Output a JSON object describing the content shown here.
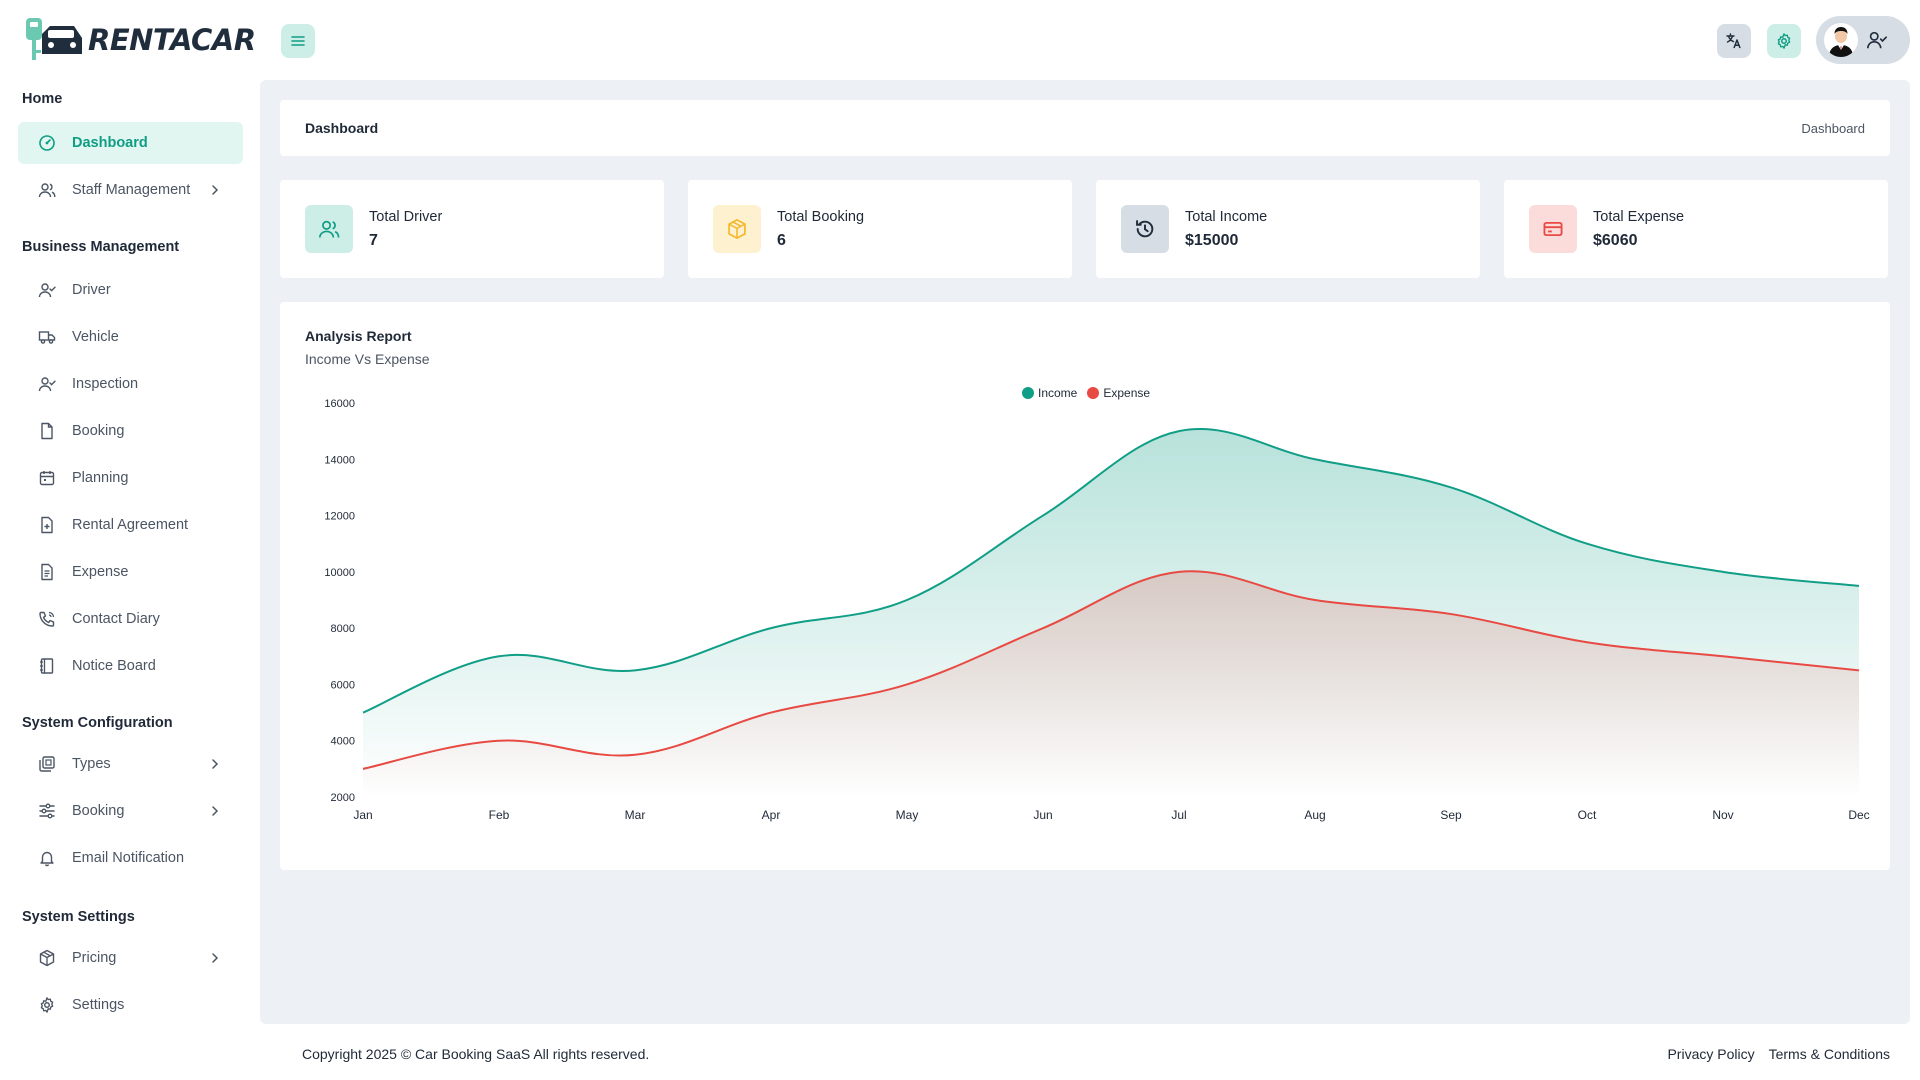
{
  "brand": {
    "name": "RENTACAR"
  },
  "header": {
    "menu_icon": "hamburger-icon",
    "translate_icon": "translate-icon",
    "settings_icon": "gear-icon",
    "user_icon": "user-check-icon"
  },
  "sidebar": {
    "sections": [
      {
        "title": "Home"
      },
      {
        "title": "Business Management"
      },
      {
        "title": "System Configuration"
      },
      {
        "title": "System Settings"
      }
    ],
    "items": [
      {
        "label": "Dashboard",
        "icon": "dashboard-icon",
        "active": true
      },
      {
        "label": "Staff Management",
        "icon": "users-icon",
        "has_children": true
      },
      {
        "label": "Driver",
        "icon": "user-check-icon"
      },
      {
        "label": "Vehicle",
        "icon": "truck-icon"
      },
      {
        "label": "Inspection",
        "icon": "user-check-icon"
      },
      {
        "label": "Booking",
        "icon": "file-icon"
      },
      {
        "label": "Planning",
        "icon": "calendar-icon"
      },
      {
        "label": "Rental Agreement",
        "icon": "file-plus-icon"
      },
      {
        "label": "Expense",
        "icon": "file-text-icon"
      },
      {
        "label": "Contact Diary",
        "icon": "phone-icon"
      },
      {
        "label": "Notice Board",
        "icon": "notebook-icon"
      },
      {
        "label": "Types",
        "icon": "layers-icon",
        "has_children": true
      },
      {
        "label": "Booking",
        "icon": "sliders-icon",
        "has_children": true
      },
      {
        "label": "Email Notification",
        "icon": "bell-icon"
      },
      {
        "label": "Pricing",
        "icon": "package-icon",
        "has_children": true
      },
      {
        "label": "Settings",
        "icon": "gear-icon"
      }
    ]
  },
  "breadcrumb": {
    "title": "Dashboard",
    "current": "Dashboard"
  },
  "stats": [
    {
      "label": "Total Driver",
      "value": "7",
      "icon": "users-icon",
      "color": "#0f9d84",
      "bg": "#cdeee6"
    },
    {
      "label": "Total Booking",
      "value": "6",
      "icon": "box-icon",
      "color": "#f5b82e",
      "bg": "#fdf1cf"
    },
    {
      "label": "Total Income",
      "value": "$15000",
      "icon": "history-icon",
      "color": "#1f2d3d",
      "bg": "#d7dde4"
    },
    {
      "label": "Total Expense",
      "value": "$6060",
      "icon": "credit-card-icon",
      "color": "#e84a43",
      "bg": "#fcdcdb"
    }
  ],
  "chart": {
    "title": "Analysis Report",
    "subtitle": "Income Vs Expense"
  },
  "chart_data": {
    "type": "area",
    "categories": [
      "Jan",
      "Feb",
      "Mar",
      "Apr",
      "May",
      "Jun",
      "Jul",
      "Aug",
      "Sep",
      "Oct",
      "Nov",
      "Dec"
    ],
    "series": [
      {
        "name": "Income",
        "color": "#109e86",
        "values": [
          5000,
          7000,
          6500,
          8000,
          9000,
          12000,
          15000,
          14000,
          13000,
          11000,
          10000,
          9500
        ]
      },
      {
        "name": "Expense",
        "color": "#e84a43",
        "values": [
          3000,
          4000,
          3500,
          5000,
          6000,
          8000,
          10000,
          9000,
          8500,
          7500,
          7000,
          6500
        ]
      }
    ],
    "y_ticks": [
      2000,
      4000,
      6000,
      8000,
      10000,
      12000,
      14000,
      16000
    ],
    "ylim": [
      2000,
      16000
    ],
    "legend_position": "top-center",
    "grid": false
  },
  "footer": {
    "copyright": "Copyright 2025 © Car Booking SaaS All rights reserved.",
    "links": [
      "Privacy Policy",
      "Terms & Conditions"
    ]
  }
}
